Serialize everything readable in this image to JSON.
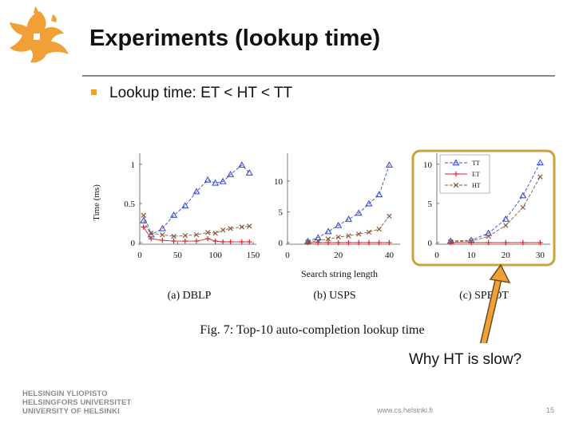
{
  "slide": {
    "title": "Experiments (lookup time)",
    "bullet": "Lookup time: ET < HT < TT",
    "annotation": "Why HT is slow?",
    "university": [
      "HELSINGIN YLIOPISTO",
      "HELSINGFORS UNIVERSITET",
      "UNIVERSITY OF HELSINKI"
    ],
    "url": "www.cs.helsinki.fi",
    "page_number": "15"
  },
  "colors": {
    "TT": "#3b4fd6",
    "ET": "#e0202a",
    "HT": "#8a5a3a",
    "logo": "#f0a036",
    "highlight": "#c9a23e",
    "arrow": "#f0a036"
  },
  "figure": {
    "caption": "Fig. 7: Top-10 auto-completion lookup time",
    "shared_xlabel": "Search string length",
    "shared_ylabel": "Time (ms)"
  },
  "chart_data": [
    {
      "type": "line",
      "title": "(a) DBLP",
      "xlabel": "Search string length",
      "ylabel": "Time (ms)",
      "xlim": [
        0,
        150
      ],
      "ylim": [
        0,
        1.1
      ],
      "xticks": [
        0,
        50,
        100,
        150
      ],
      "xtick_labels": [
        "0",
        "50",
        "100",
        "150"
      ],
      "yticks": [
        0,
        0.5,
        1
      ],
      "ytick_labels": [
        "0",
        "0.5",
        "1"
      ],
      "series": [
        {
          "name": "TT",
          "marker": "triangle",
          "x": [
            5,
            15,
            30,
            45,
            60,
            75,
            90,
            100,
            110,
            120,
            135,
            145
          ],
          "y": [
            0.28,
            0.1,
            0.18,
            0.35,
            0.47,
            0.65,
            0.8,
            0.76,
            0.78,
            0.87,
            0.99,
            0.89
          ]
        },
        {
          "name": "ET",
          "marker": "plus",
          "x": [
            5,
            15,
            30,
            45,
            60,
            75,
            90,
            100,
            110,
            120,
            135,
            145
          ],
          "y": [
            0.2,
            0.05,
            0.03,
            0.02,
            0.02,
            0.02,
            0.05,
            0.02,
            0.01,
            0.01,
            0.01,
            0.01
          ]
        },
        {
          "name": "HT",
          "marker": "cross",
          "x": [
            5,
            15,
            30,
            45,
            60,
            75,
            90,
            100,
            110,
            120,
            135,
            145
          ],
          "y": [
            0.35,
            0.12,
            0.1,
            0.08,
            0.09,
            0.1,
            0.13,
            0.12,
            0.16,
            0.18,
            0.2,
            0.21
          ]
        }
      ]
    },
    {
      "type": "line",
      "title": "(b) USPS",
      "xlabel": "Search string length",
      "ylabel": "",
      "xlim": [
        0,
        43
      ],
      "ylim": [
        0,
        14
      ],
      "xticks": [
        0,
        20,
        40
      ],
      "xtick_labels": [
        "0",
        "20",
        "40"
      ],
      "yticks": [
        0,
        5,
        10
      ],
      "ytick_labels": [
        "0",
        "5",
        "10"
      ],
      "series": [
        {
          "name": "TT",
          "marker": "triangle",
          "x": [
            8,
            12,
            16,
            20,
            24,
            28,
            32,
            36,
            40
          ],
          "y": [
            0.2,
            0.8,
            1.8,
            2.8,
            3.8,
            4.8,
            6.3,
            7.8,
            12.6
          ]
        },
        {
          "name": "ET",
          "marker": "plus",
          "x": [
            8,
            12,
            16,
            20,
            24,
            28,
            32,
            36,
            40
          ],
          "y": [
            0.0,
            0.0,
            0.0,
            0.0,
            0.0,
            0.0,
            0.0,
            0.0,
            0.0
          ]
        },
        {
          "name": "HT",
          "marker": "cross",
          "x": [
            8,
            12,
            16,
            20,
            24,
            28,
            32,
            36,
            40
          ],
          "y": [
            0.1,
            0.3,
            0.6,
            0.9,
            1.1,
            1.4,
            1.7,
            2.2,
            4.3
          ]
        }
      ]
    },
    {
      "type": "line",
      "title": "(c) SPEOT",
      "xlabel": "Search string length",
      "ylabel": "",
      "xlim": [
        0,
        32
      ],
      "ylim": [
        0,
        11
      ],
      "xticks": [
        0,
        10,
        20,
        30
      ],
      "xtick_labels": [
        "0",
        "10",
        "20",
        "30"
      ],
      "yticks": [
        0,
        5,
        10
      ],
      "ytick_labels": [
        "0",
        "5",
        "10"
      ],
      "legend": "top-left",
      "series": [
        {
          "name": "TT",
          "marker": "triangle",
          "x": [
            4,
            10,
            15,
            20,
            25,
            30
          ],
          "y": [
            0.2,
            0.3,
            1.2,
            3.0,
            6.0,
            10.2
          ]
        },
        {
          "name": "ET",
          "marker": "plus",
          "x": [
            4,
            10,
            15,
            20,
            25,
            30
          ],
          "y": [
            0.0,
            0.0,
            0.0,
            0.0,
            0.0,
            0.0
          ]
        },
        {
          "name": "HT",
          "marker": "cross",
          "x": [
            4,
            10,
            15,
            20,
            25,
            30
          ],
          "y": [
            0.1,
            0.2,
            0.8,
            2.2,
            4.5,
            8.4
          ]
        }
      ]
    }
  ]
}
